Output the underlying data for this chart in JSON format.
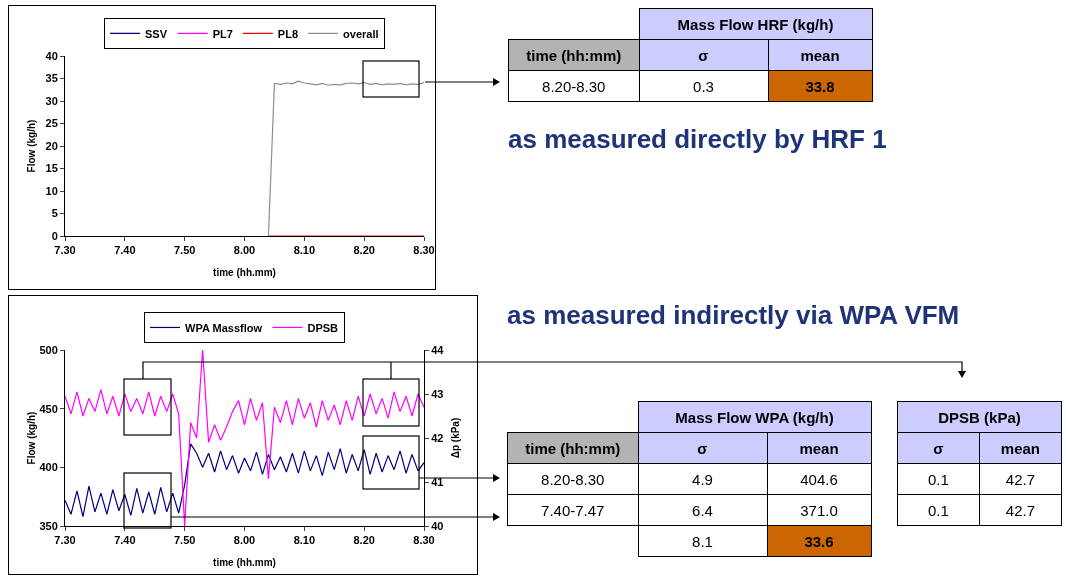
{
  "chart_data": [
    {
      "type": "line",
      "legend": "top",
      "xlabel": "time (hh.mm)",
      "ylabel": "Flow (kg/h)",
      "categories": [
        "7.30",
        null,
        null,
        null,
        null,
        null,
        null,
        null,
        null,
        null,
        "7.40",
        null,
        null,
        null,
        null,
        null,
        null,
        null,
        null,
        null,
        "7.50",
        null,
        null,
        null,
        null,
        null,
        null,
        null,
        null,
        null,
        "8.00",
        null,
        null,
        null,
        null,
        null,
        null,
        null,
        null,
        null,
        "8.10",
        null,
        null,
        null,
        null,
        null,
        null,
        null,
        null,
        null,
        "8.20",
        null,
        null,
        null,
        null,
        null,
        null,
        null,
        null,
        null,
        "8.30"
      ],
      "ylim": [
        0,
        40
      ],
      "yticks": [
        0,
        5,
        10,
        15,
        20,
        25,
        30,
        35,
        40
      ],
      "grid": false,
      "series": [
        {
          "name": "SSV",
          "color": "#000080",
          "values": [
            null,
            null,
            null,
            null,
            null,
            null,
            null,
            null,
            null,
            null,
            null,
            null,
            null,
            null,
            null,
            null,
            null,
            null,
            null,
            null,
            null,
            null,
            null,
            null,
            null,
            null,
            null,
            null,
            null,
            null,
            null,
            null,
            null,
            null,
            null,
            null,
            null,
            null,
            null,
            null,
            null,
            null,
            null,
            null,
            null,
            null,
            null,
            null,
            null,
            null,
            null,
            null,
            null,
            null,
            null,
            null,
            null,
            null,
            null,
            null,
            null
          ]
        },
        {
          "name": "PL7",
          "color": "#ff00ff",
          "values": [
            null,
            null,
            null,
            null,
            null,
            null,
            null,
            null,
            null,
            null,
            null,
            null,
            null,
            null,
            null,
            null,
            null,
            null,
            null,
            null,
            null,
            null,
            null,
            null,
            null,
            null,
            null,
            null,
            null,
            null,
            null,
            null,
            null,
            null,
            null,
            null,
            null,
            null,
            null,
            null,
            null,
            null,
            null,
            null,
            null,
            null,
            null,
            null,
            null,
            null,
            null,
            null,
            null,
            null,
            null,
            null,
            null,
            null,
            null,
            null,
            null
          ]
        },
        {
          "name": "PL8",
          "color": "#ff0000",
          "values": [
            null,
            null,
            null,
            null,
            null,
            null,
            null,
            null,
            null,
            null,
            null,
            null,
            null,
            null,
            null,
            null,
            null,
            null,
            null,
            null,
            null,
            null,
            null,
            null,
            null,
            null,
            null,
            null,
            null,
            null,
            null,
            null,
            null,
            null,
            0,
            0,
            0,
            0,
            0,
            0,
            0,
            0,
            0,
            0,
            0,
            0,
            0,
            0,
            0,
            0,
            0,
            0,
            0,
            0,
            0,
            0,
            0,
            0,
            0,
            0,
            0
          ]
        },
        {
          "name": "overall",
          "color": "#8c8ca0",
          "values": [
            null,
            null,
            null,
            null,
            null,
            null,
            null,
            null,
            null,
            null,
            null,
            null,
            null,
            null,
            null,
            null,
            null,
            null,
            null,
            null,
            null,
            null,
            null,
            null,
            null,
            null,
            null,
            null,
            null,
            null,
            null,
            null,
            null,
            null,
            0,
            33.9,
            33.7,
            34.0,
            33.8,
            34.4,
            34.0,
            33.8,
            33.6,
            33.9,
            33.5,
            33.7,
            33.6,
            33.9,
            34.0,
            33.8,
            34.1,
            33.7,
            33.9,
            33.6,
            33.8,
            33.7,
            33.9,
            33.6,
            33.8,
            33.7,
            34.1
          ]
        }
      ]
    },
    {
      "type": "line",
      "legend": "top",
      "xlabel": "time (hh.mm)",
      "ylabel": "Flow (kg/h)",
      "y2label": "Δp (kPa)",
      "categories": [
        "7.30",
        null,
        null,
        null,
        null,
        null,
        null,
        null,
        null,
        null,
        "7.40",
        null,
        null,
        null,
        null,
        null,
        null,
        null,
        null,
        null,
        "7.50",
        null,
        null,
        null,
        null,
        null,
        null,
        null,
        null,
        null,
        "8.00",
        null,
        null,
        null,
        null,
        null,
        null,
        null,
        null,
        null,
        "8.10",
        null,
        null,
        null,
        null,
        null,
        null,
        null,
        null,
        null,
        "8.20",
        null,
        null,
        null,
        null,
        null,
        null,
        null,
        null,
        null,
        "8.30"
      ],
      "ylim": [
        350,
        500
      ],
      "yticks": [
        350,
        400,
        450,
        500
      ],
      "y2lim": [
        40,
        44
      ],
      "y2ticks": [
        40,
        41,
        42,
        43,
        44
      ],
      "grid": false,
      "series": [
        {
          "name": "WPA Massflow",
          "color": "#000080",
          "values": [
            372,
            360,
            380,
            358,
            384,
            362,
            378,
            360,
            381,
            363,
            377,
            359,
            382,
            361,
            379,
            360,
            383,
            362,
            378,
            361,
            385,
            420,
            412,
            400,
            412,
            396,
            414,
            398,
            410,
            395,
            408,
            397,
            413,
            394,
            411,
            398,
            409,
            396,
            412,
            395,
            414,
            397,
            410,
            393,
            413,
            398,
            416,
            395,
            411,
            397,
            415,
            394,
            412,
            396,
            410,
            398,
            414,
            395,
            411,
            397,
            404
          ]
        },
        {
          "name": "DPSB",
          "color": "#ff00ff",
          "axis": "y2",
          "values": [
            42.95,
            42.55,
            43.05,
            42.5,
            42.9,
            42.6,
            43.1,
            42.55,
            42.95,
            42.5,
            43.0,
            42.6,
            42.9,
            42.55,
            43.05,
            42.5,
            42.95,
            42.6,
            43.0,
            42.55,
            40.0,
            42.35,
            42.0,
            44.0,
            41.9,
            42.3,
            41.95,
            42.25,
            42.6,
            42.85,
            42.3,
            42.9,
            42.4,
            42.8,
            41.07,
            42.7,
            42.35,
            42.85,
            42.3,
            42.9,
            42.45,
            42.8,
            42.25,
            42.85,
            42.4,
            42.75,
            42.3,
            42.85,
            42.4,
            42.95,
            42.5,
            43.0,
            42.55,
            42.9,
            42.45,
            43.05,
            42.6,
            42.95,
            42.5,
            43.0,
            42.7
          ]
        }
      ]
    },
    {
      "type": "other",
      "title": "Mass Flow HRF (kg/h)",
      "ylabel": "time (hh:mm)",
      "categories": [
        "σ",
        "mean"
      ],
      "y_categories": [
        "8.20-8.30"
      ],
      "cell_labels": [
        [
          "0.3",
          "33.8"
        ]
      ],
      "colors": [
        [
          null,
          "#cc6600"
        ]
      ],
      "annotations": [
        "as measured directly by HRF 1"
      ]
    },
    {
      "type": "other",
      "title": "Mass Flow WPA (kg/h)",
      "ylabel": "time (hh:mm)",
      "categories": [
        "σ",
        "mean"
      ],
      "y_categories": [
        "8.20-8.30",
        "7.40-7.47",
        null
      ],
      "cell_labels": [
        [
          "4.9",
          "404.6"
        ],
        [
          "6.4",
          "371.0"
        ],
        [
          "8.1",
          "33.6"
        ]
      ],
      "colors": [
        [
          null,
          null
        ],
        [
          null,
          null
        ],
        [
          null,
          "#cc6600"
        ]
      ],
      "annotations": [
        "as measured indirectly via WPA VFM"
      ]
    },
    {
      "type": "other",
      "title": "DPSB (kPa)",
      "categories": [
        "σ",
        "mean"
      ],
      "cell_labels": [
        [
          "0.1",
          "42.7"
        ],
        [
          "0.1",
          "42.7"
        ]
      ]
    }
  ]
}
